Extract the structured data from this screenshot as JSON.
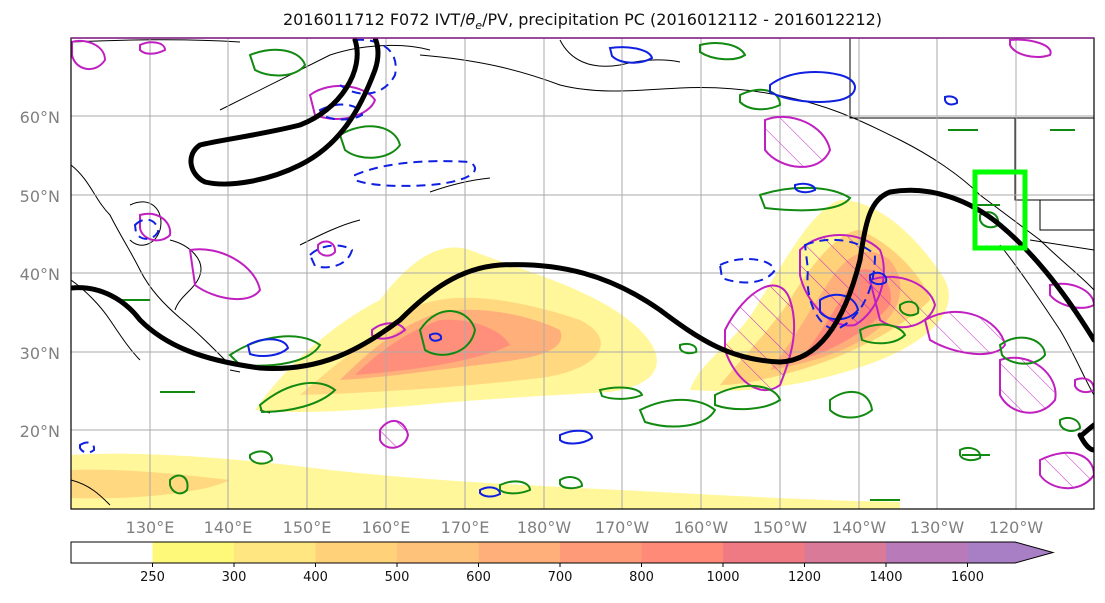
{
  "title": "2016011712 F072 IVT/θe/PV, precipitation PC (2016012112 - 2016012212)",
  "title_parts": {
    "prefix": "2016011712 F072 IVT/",
    "theta": "θ",
    "theta_sub": "e",
    "suffix": "/PV, precipitation PC (2016012112 - 2016012212)"
  },
  "lat_labels": [
    "60°N",
    "50°N",
    "40°N",
    "30°N",
    "20°N"
  ],
  "lon_labels": [
    "130°E",
    "140°E",
    "150°E",
    "160°E",
    "170°E",
    "180°W",
    "170°W",
    "160°W",
    "150°W",
    "140°W",
    "130°W",
    "120°W"
  ],
  "colorbar": {
    "labels": [
      "250",
      "300",
      "400",
      "500",
      "600",
      "700",
      "800",
      "1000",
      "1200",
      "1400",
      "1600"
    ],
    "colors": [
      "#ffffff",
      "#fff97a",
      "#ffe680",
      "#ffd27a",
      "#ffc27a",
      "#ffb07a",
      "#ff9a78",
      "#ff8a78",
      "#f07a84",
      "#d97a98",
      "#b87ab8",
      "#a87ec4"
    ]
  },
  "colors": {
    "ivt_low": "#fff79a",
    "ivt_mid": "#ffc07a",
    "ivt_high": "#ff8a7a",
    "pv_contour": "#000000",
    "green_contour": "#128a12",
    "blue_contour": "#1020e0",
    "magenta_contour": "#c020c0",
    "box": "#00ff00",
    "grid": "#aaaaaa"
  }
}
